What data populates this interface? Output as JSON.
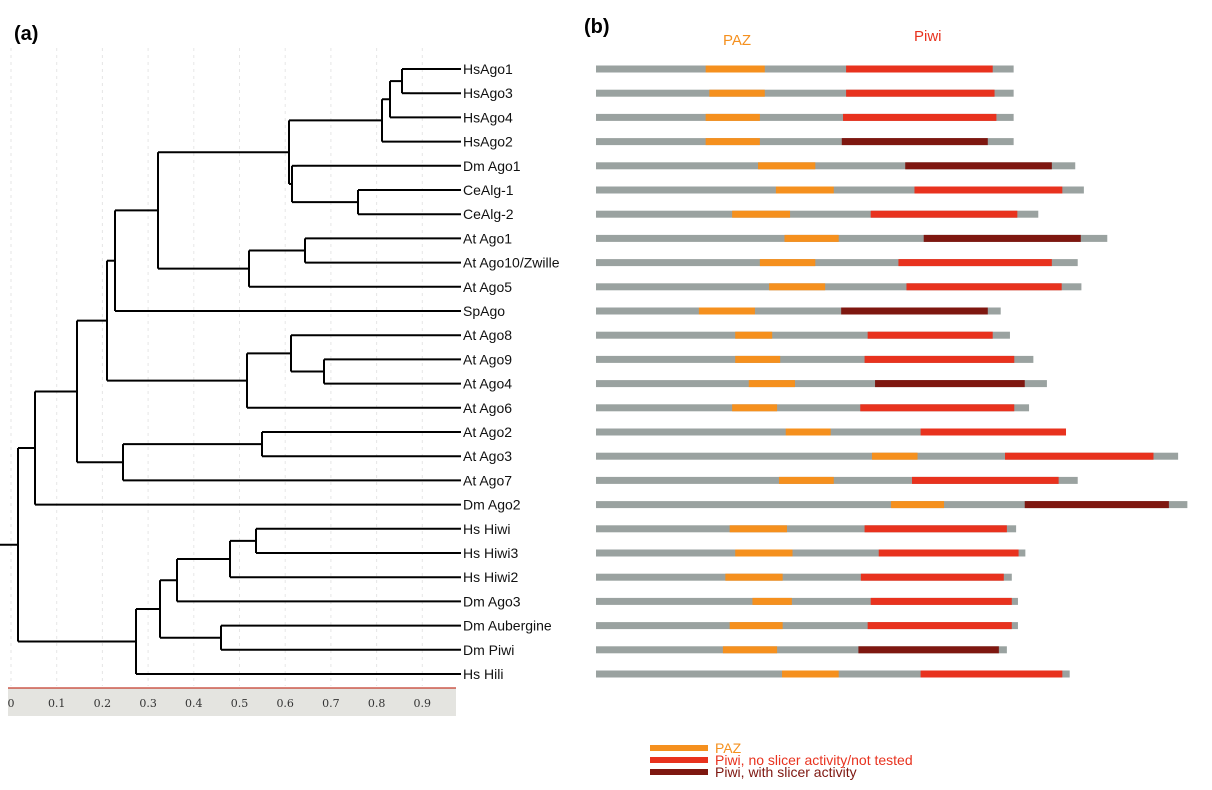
{
  "panels": {
    "a": "(a)",
    "b": "(b)"
  },
  "colors": {
    "backbone": "#9aa2a0",
    "paz": "#f5901e",
    "piwi": "#e8321e",
    "piwi_slicer": "#7e1710",
    "tree": "#000000",
    "axis_bg": "#e4e4e0",
    "axis_line": "#c43a2a"
  },
  "domain_headers": {
    "paz": "PAZ",
    "piwi": "Piwi"
  },
  "leaves": [
    "HsAgo1",
    "HsAgo3",
    "HsAgo4",
    "HsAgo2",
    "Dm Ago1",
    "CeAlg-1",
    "CeAlg-2",
    "At Ago1",
    "At Ago10/Zwille",
    "At Ago5",
    "SpAgo",
    "At Ago8",
    "At Ago9",
    "At Ago4",
    "At Ago6",
    "At Ago2",
    "At Ago3",
    "At Ago7",
    "Dm Ago2",
    "Hs Hiwi",
    "Hs Hiwi3",
    "Hs Hiwi2",
    "Dm Ago3",
    "Dm Aubergine",
    "Dm Piwi",
    "Hs Hili"
  ],
  "scale_ticks": [
    "0",
    "0.1",
    "0.2",
    "0.3",
    "0.4",
    "0.5",
    "0.6",
    "0.7",
    "0.8",
    "0.9"
  ],
  "domain_maps": [
    {
      "start": 0.0,
      "end": 0.678,
      "paz": [
        0.178,
        0.274
      ],
      "piwi": [
        0.406,
        0.644
      ],
      "slicer": false
    },
    {
      "start": 0.0,
      "end": 0.678,
      "paz": [
        0.184,
        0.274
      ],
      "piwi": [
        0.406,
        0.647
      ],
      "slicer": false
    },
    {
      "start": 0.0,
      "end": 0.678,
      "paz": [
        0.178,
        0.266
      ],
      "piwi": [
        0.401,
        0.65
      ],
      "slicer": false
    },
    {
      "start": 0.0,
      "end": 0.678,
      "paz": [
        0.178,
        0.266
      ],
      "piwi": [
        0.399,
        0.636
      ],
      "slicer": true
    },
    {
      "start": 0.0,
      "end": 0.778,
      "paz": [
        0.263,
        0.356
      ],
      "piwi": [
        0.502,
        0.74
      ],
      "slicer": true
    },
    {
      "start": 0.0,
      "end": 0.792,
      "paz": [
        0.292,
        0.386
      ],
      "piwi": [
        0.517,
        0.757
      ],
      "slicer": false
    },
    {
      "start": 0.0,
      "end": 0.718,
      "paz": [
        0.221,
        0.315
      ],
      "piwi": [
        0.446,
        0.684
      ],
      "slicer": false
    },
    {
      "start": 0.0,
      "end": 0.83,
      "paz": [
        0.306,
        0.394
      ],
      "piwi": [
        0.532,
        0.787
      ],
      "slicer": true
    },
    {
      "start": 0.0,
      "end": 0.782,
      "paz": [
        0.266,
        0.356
      ],
      "piwi": [
        0.491,
        0.74
      ],
      "slicer": false
    },
    {
      "start": 0.0,
      "end": 0.788,
      "paz": [
        0.281,
        0.372
      ],
      "piwi": [
        0.504,
        0.756
      ],
      "slicer": false
    },
    {
      "start": 0.0,
      "end": 0.657,
      "paz": [
        0.167,
        0.258
      ],
      "piwi": [
        0.398,
        0.636
      ],
      "slicer": true
    },
    {
      "start": 0.0,
      "end": 0.672,
      "paz": [
        0.226,
        0.286
      ],
      "piwi": [
        0.441,
        0.644
      ],
      "slicer": false
    },
    {
      "start": 0.0,
      "end": 0.71,
      "paz": [
        0.226,
        0.299
      ],
      "piwi": [
        0.436,
        0.679
      ],
      "slicer": false
    },
    {
      "start": 0.0,
      "end": 0.732,
      "paz": [
        0.248,
        0.323
      ],
      "piwi": [
        0.453,
        0.696
      ],
      "slicer": true
    },
    {
      "start": 0.0,
      "end": 0.703,
      "paz": [
        0.221,
        0.294
      ],
      "piwi": [
        0.429,
        0.679
      ],
      "slicer": false
    },
    {
      "start": 0.0,
      "end": 0.759,
      "paz": [
        0.308,
        0.381
      ],
      "piwi": [
        0.527,
        0.763
      ],
      "slicer": false
    },
    {
      "start": 0.0,
      "end": 0.945,
      "paz": [
        0.448,
        0.522
      ],
      "piwi": [
        0.664,
        0.905
      ],
      "slicer": false
    },
    {
      "start": 0.0,
      "end": 0.782,
      "paz": [
        0.297,
        0.386
      ],
      "piwi": [
        0.513,
        0.751
      ],
      "slicer": false
    },
    {
      "start": 0.0,
      "end": 0.96,
      "paz": [
        0.479,
        0.565
      ],
      "piwi": [
        0.696,
        0.93
      ],
      "slicer": true
    },
    {
      "start": 0.0,
      "end": 0.682,
      "paz": [
        0.217,
        0.31
      ],
      "piwi": [
        0.436,
        0.667
      ],
      "slicer": false
    },
    {
      "start": 0.0,
      "end": 0.697,
      "paz": [
        0.226,
        0.319
      ],
      "piwi": [
        0.459,
        0.686
      ],
      "slicer": false
    },
    {
      "start": 0.0,
      "end": 0.675,
      "paz": [
        0.21,
        0.303
      ],
      "piwi": [
        0.43,
        0.662
      ],
      "slicer": false
    },
    {
      "start": 0.0,
      "end": 0.685,
      "paz": [
        0.254,
        0.318
      ],
      "piwi": [
        0.446,
        0.675
      ],
      "slicer": false
    },
    {
      "start": 0.0,
      "end": 0.685,
      "paz": [
        0.217,
        0.303
      ],
      "piwi": [
        0.441,
        0.675
      ],
      "slicer": false
    },
    {
      "start": 0.0,
      "end": 0.667,
      "paz": [
        0.206,
        0.294
      ],
      "piwi": [
        0.426,
        0.654
      ],
      "slicer": true
    },
    {
      "start": 0.0,
      "end": 0.769,
      "paz": [
        0.302,
        0.394
      ],
      "piwi": [
        0.527,
        0.757
      ],
      "slicer": false
    }
  ],
  "legend": [
    {
      "key": "paz",
      "label": "PAZ"
    },
    {
      "key": "piwi",
      "label": "Piwi, no slicer activity/not tested"
    },
    {
      "key": "piwi_slicer",
      "label": "Piwi, with slicer activity"
    }
  ]
}
